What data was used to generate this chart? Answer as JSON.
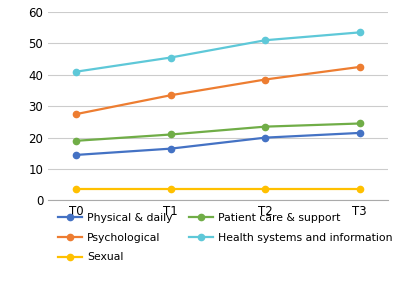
{
  "x_labels": [
    "T0",
    "T1",
    "T2",
    "T3"
  ],
  "x_values": [
    0,
    1,
    2,
    3
  ],
  "series": [
    {
      "name": "Physical & daily",
      "values": [
        14.5,
        16.5,
        20.0,
        21.5
      ],
      "color": "#4472c4",
      "marker": "o"
    },
    {
      "name": "Psychological",
      "values": [
        27.5,
        33.5,
        38.5,
        42.5
      ],
      "color": "#ed7d31",
      "marker": "o"
    },
    {
      "name": "Sexual",
      "values": [
        3.5,
        3.5,
        3.5,
        3.5
      ],
      "color": "#ffc000",
      "marker": "o"
    },
    {
      "name": "Patient care & support",
      "values": [
        19.0,
        21.0,
        23.5,
        24.5
      ],
      "color": "#70ad47",
      "marker": "o"
    },
    {
      "name": "Health systems and information",
      "values": [
        41.0,
        45.5,
        51.0,
        53.5
      ],
      "color": "#5ec8d8",
      "marker": "o"
    }
  ],
  "ylim": [
    0,
    60
  ],
  "yticks": [
    0,
    10,
    20,
    30,
    40,
    50,
    60
  ],
  "background_color": "#ffffff",
  "grid_color": "#cccccc",
  "legend_order": [
    0,
    1,
    2,
    3,
    4
  ]
}
